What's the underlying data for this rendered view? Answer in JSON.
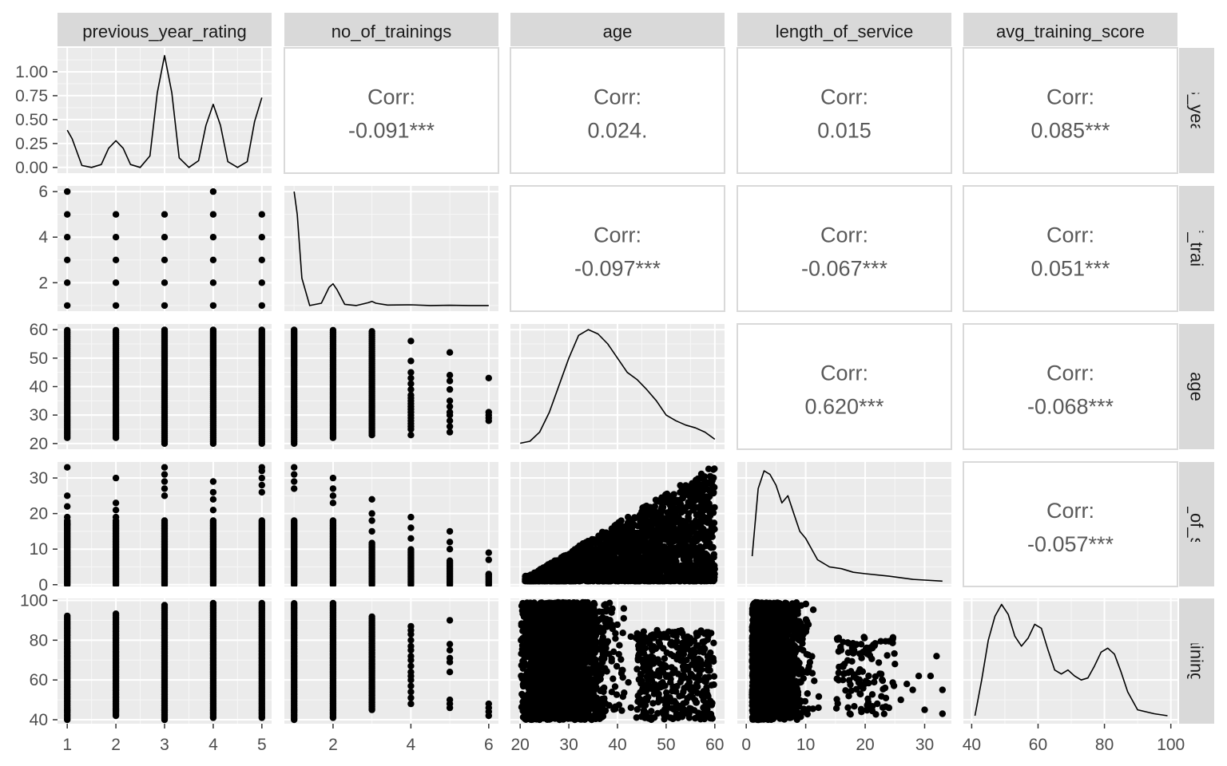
{
  "variables": [
    "previous_year_rating",
    "no_of_trainings",
    "age",
    "length_of_service",
    "avg_training_score"
  ],
  "corr_label": "Corr:",
  "correlations": {
    "0-1": "-0.091***",
    "0-2": "0.024.",
    "0-3": "0.015",
    "0-4": "0.085***",
    "1-2": "-0.097***",
    "1-3": "-0.067***",
    "1-4": "0.051***",
    "2-3": "0.620***",
    "2-4": "-0.068***",
    "3-4": "-0.057***"
  },
  "axes": {
    "x_ticks": [
      [
        1,
        2,
        3,
        4,
        5
      ],
      [
        2,
        4,
        6
      ],
      [
        20,
        30,
        40,
        50,
        60
      ],
      [
        0,
        10,
        20,
        30
      ],
      [
        40,
        60,
        80,
        100
      ]
    ],
    "x_ranges": [
      [
        0.8,
        5.2
      ],
      [
        0.75,
        6.25
      ],
      [
        18,
        62
      ],
      [
        -1.5,
        34.5
      ],
      [
        37.5,
        102
      ]
    ],
    "y_ticks": [
      [
        "0.00",
        "0.25",
        "0.50",
        "0.75",
        "1.00"
      ],
      [
        2,
        4,
        6
      ],
      [
        20,
        30,
        40,
        50,
        60
      ],
      [
        0,
        10,
        20,
        30
      ],
      [
        40,
        60,
        80,
        100
      ]
    ],
    "y_ranges": [
      [
        -0.06,
        1.25
      ],
      [
        0.75,
        6.25
      ],
      [
        18,
        62
      ],
      [
        -0.5,
        34.5
      ],
      [
        38,
        101
      ]
    ]
  },
  "chart_data": {
    "type": "scatter",
    "layout": "pairs-matrix (ggpairs)",
    "variables": [
      "previous_year_rating",
      "no_of_trainings",
      "age",
      "length_of_service",
      "avg_training_score"
    ],
    "upper": "correlation",
    "diagonal": "density",
    "lower": "scatter",
    "grid": true,
    "densities": {
      "previous_year_rating": {
        "x": [
          1,
          1.1,
          1.3,
          1.5,
          1.7,
          1.85,
          2,
          2.15,
          2.3,
          2.5,
          2.7,
          2.85,
          3,
          3.15,
          3.3,
          3.5,
          3.7,
          3.85,
          4,
          4.15,
          4.3,
          4.5,
          4.7,
          4.85,
          5
        ],
        "y": [
          0.39,
          0.3,
          0.02,
          0.0,
          0.03,
          0.2,
          0.28,
          0.2,
          0.03,
          0.0,
          0.12,
          0.78,
          1.17,
          0.78,
          0.1,
          0.0,
          0.07,
          0.44,
          0.66,
          0.44,
          0.06,
          0.0,
          0.06,
          0.48,
          0.73
        ]
      },
      "no_of_trainings": {
        "x": [
          1,
          1.08,
          1.2,
          1.4,
          1.7,
          1.9,
          2,
          2.1,
          2.3,
          2.6,
          2.9,
          3,
          3.1,
          3.4,
          4,
          4.5,
          5,
          5.5,
          6
        ],
        "y": [
          6,
          5.0,
          2.2,
          1.0,
          1.1,
          1.8,
          1.95,
          1.7,
          1.05,
          1.0,
          1.12,
          1.18,
          1.1,
          1.02,
          1.03,
          1.0,
          1.01,
          1.0,
          1.0
        ]
      },
      "age": {
        "x": [
          20,
          22,
          24,
          26,
          28,
          30,
          32,
          34,
          36,
          38,
          40,
          42,
          44,
          46,
          48,
          50,
          52,
          54,
          56,
          58,
          60
        ],
        "y": [
          20.1,
          20.8,
          24,
          31,
          40.5,
          50,
          58,
          60,
          58.5,
          55,
          50,
          45,
          42.5,
          39,
          35,
          30,
          28,
          26.5,
          25.5,
          24,
          21.5
        ]
      },
      "length_of_service": {
        "x": [
          1,
          2,
          3,
          4,
          5,
          6,
          7,
          8,
          9,
          10,
          12,
          14,
          16,
          18,
          20,
          24,
          28,
          33
        ],
        "y": [
          8,
          27,
          32,
          31,
          28,
          23,
          25,
          20,
          15,
          13,
          7,
          5,
          4.5,
          3.5,
          3.1,
          2.4,
          1.5,
          1
        ]
      },
      "avg_training_score": {
        "x": [
          41,
          43,
          45,
          47,
          49,
          51,
          53,
          55,
          57,
          59,
          61,
          63,
          65,
          67,
          69,
          71,
          73,
          75,
          77,
          79,
          81,
          83,
          85,
          87,
          90,
          95,
          99
        ],
        "y": [
          42,
          60,
          80,
          92,
          98,
          93,
          82,
          77,
          81,
          88,
          86,
          75,
          65,
          63,
          65,
          62,
          60,
          61,
          67,
          74,
          76,
          73,
          64,
          54,
          45,
          43,
          42
        ]
      }
    }
  }
}
